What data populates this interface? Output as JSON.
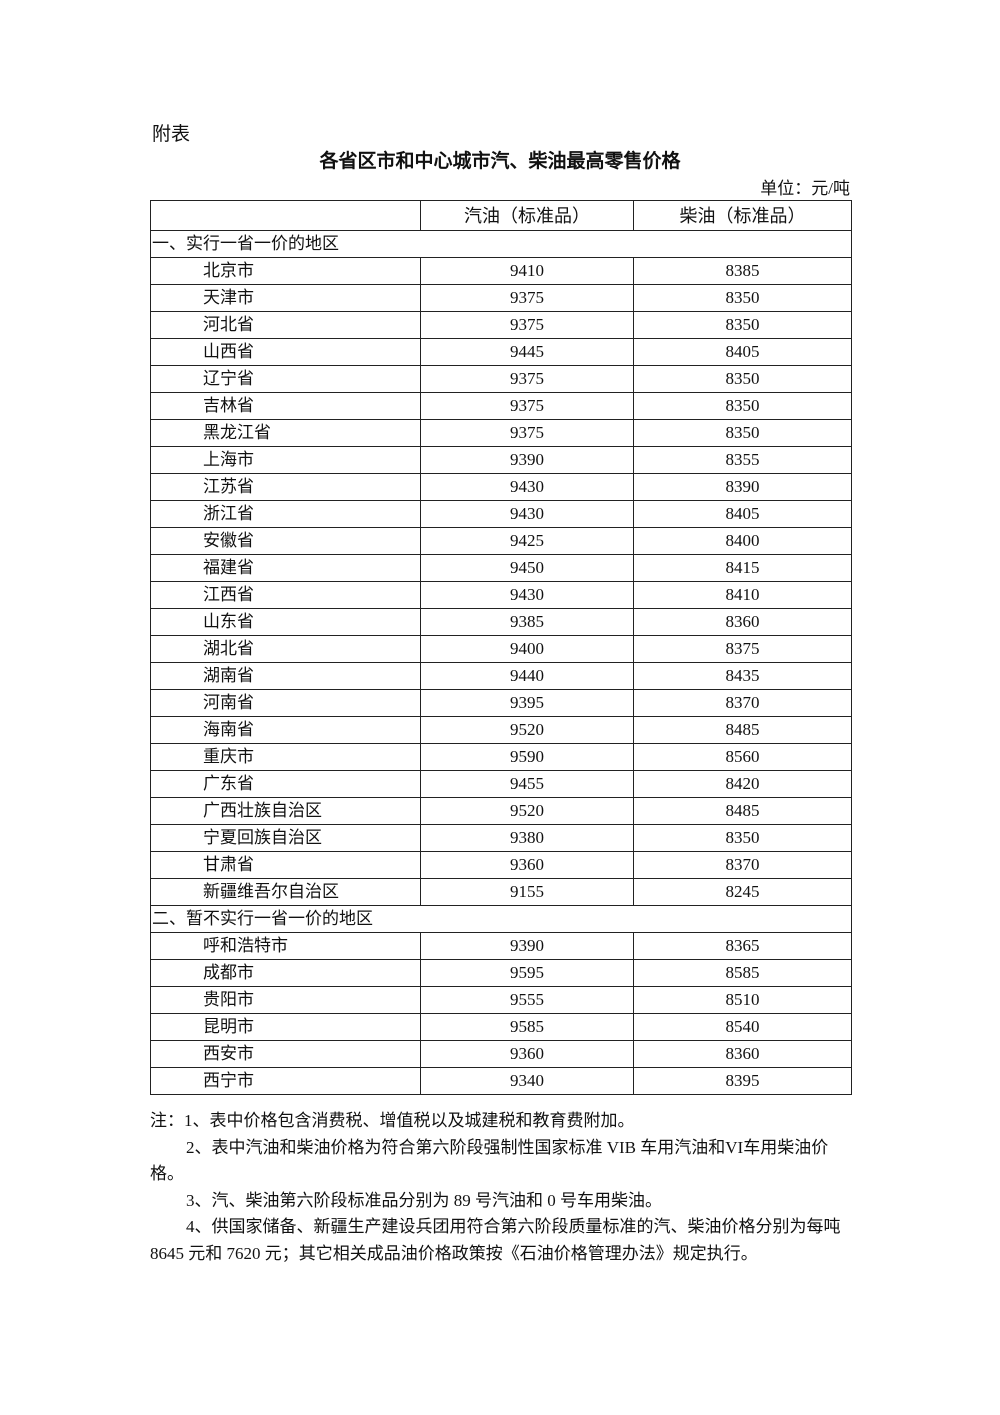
{
  "attachment_label": "附表",
  "title": "各省区市和中心城市汽、柴油最高零售价格",
  "unit": "单位：元/吨",
  "headers": [
    "",
    "汽油（标准品）",
    "柴油（标准品）"
  ],
  "sections": [
    {
      "label": "一、实行一省一价的地区",
      "rows": [
        [
          "北京市",
          "9410",
          "8385"
        ],
        [
          "天津市",
          "9375",
          "8350"
        ],
        [
          "河北省",
          "9375",
          "8350"
        ],
        [
          "山西省",
          "9445",
          "8405"
        ],
        [
          "辽宁省",
          "9375",
          "8350"
        ],
        [
          "吉林省",
          "9375",
          "8350"
        ],
        [
          "黑龙江省",
          "9375",
          "8350"
        ],
        [
          "上海市",
          "9390",
          "8355"
        ],
        [
          "江苏省",
          "9430",
          "8390"
        ],
        [
          "浙江省",
          "9430",
          "8405"
        ],
        [
          "安徽省",
          "9425",
          "8400"
        ],
        [
          "福建省",
          "9450",
          "8415"
        ],
        [
          "江西省",
          "9430",
          "8410"
        ],
        [
          "山东省",
          "9385",
          "8360"
        ],
        [
          "湖北省",
          "9400",
          "8375"
        ],
        [
          "湖南省",
          "9440",
          "8435"
        ],
        [
          "河南省",
          "9395",
          "8370"
        ],
        [
          "海南省",
          "9520",
          "8485"
        ],
        [
          "重庆市",
          "9590",
          "8560"
        ],
        [
          "广东省",
          "9455",
          "8420"
        ],
        [
          "广西壮族自治区",
          "9520",
          "8485"
        ],
        [
          "宁夏回族自治区",
          "9380",
          "8350"
        ],
        [
          "甘肃省",
          "9360",
          "8370"
        ],
        [
          "新疆维吾尔自治区",
          "9155",
          "8245"
        ]
      ]
    },
    {
      "label": "二、暂不实行一省一价的地区",
      "rows": [
        [
          "呼和浩特市",
          "9390",
          "8365"
        ],
        [
          "成都市",
          "9595",
          "8585"
        ],
        [
          "贵阳市",
          "9555",
          "8510"
        ],
        [
          "昆明市",
          "9585",
          "8540"
        ],
        [
          "西安市",
          "9360",
          "8360"
        ],
        [
          "西宁市",
          "9340",
          "8395"
        ]
      ]
    }
  ],
  "notes": [
    "注：1、表中价格包含消费税、增值税以及城建税和教育费附加。",
    "2、表中汽油和柴油价格为符合第六阶段强制性国家标准 VIB 车用汽油和VI车用柴油价格。",
    "3、汽、柴油第六阶段标准品分别为 89 号汽油和 0 号车用柴油。",
    "4、供国家储备、新疆生产建设兵团用符合第六阶段质量标准的汽、柴油价格分别为每吨 8645 元和 7620 元；其它相关成品油价格政策按《石油价格管理办法》规定执行。"
  ]
}
